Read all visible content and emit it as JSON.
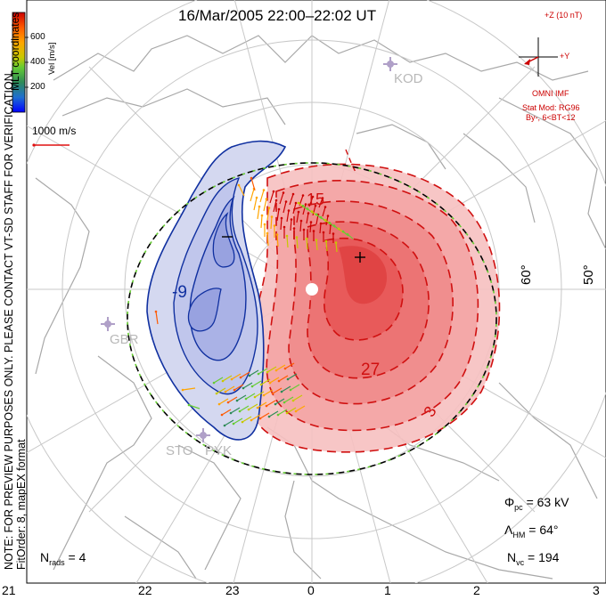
{
  "title": "16/Mar/2005 22:00–22:02 UT",
  "note": {
    "line1": "NOTE: FOR PREVIEW PURPOSES ONLY. PLEASE CONTACT VT-SD STAFF FOR VERIFICATION.",
    "line2": "FitOrder: 8, mapEX format",
    "coords": "MLT coordinates"
  },
  "color_bar": {
    "label": "Vel [m/s]",
    "ticks": [
      "600",
      "400",
      "200"
    ],
    "colors": [
      "#cc0000",
      "#ff5a00",
      "#ffa500",
      "#c8c800",
      "#66cc33",
      "#2e8b57",
      "#1e6fd0",
      "#0000ff"
    ]
  },
  "vector_scale": "1000 m/s",
  "imf": {
    "z_label": "+Z (10 nT)",
    "y_label": "+Y",
    "source": "OMNI IMF",
    "model": "Stat Mod: RG96",
    "condition": "By-, 6<BT<12"
  },
  "stations": [
    "KOD",
    "GBR",
    "STO",
    "PYK"
  ],
  "lat_labels": [
    "60°",
    "50°"
  ],
  "contour_labels": [
    "-9",
    "15",
    "27",
    "3"
  ],
  "stats": {
    "phi_pc_sym": "Φ",
    "phi_pc_sub": "pc",
    "phi_pc_val": "= 63 kV",
    "lambda_hm_sym": "Λ",
    "lambda_hm_sub": "HM",
    "lambda_hm_val": "= 64°",
    "n_vc_sym": "N",
    "n_vc_sub": "vc",
    "n_vc_val": "= 194",
    "n_rads_sym": "N",
    "n_rads_sub": "rads",
    "n_rads_val": "= 4"
  },
  "mlt_ticks": [
    "21",
    "22",
    "23",
    "0",
    "1",
    "2",
    "3"
  ],
  "colors": {
    "positive": "#e01010",
    "negative": "#1030a0",
    "boundary": "#000000",
    "land": "#a0a0a0"
  }
}
